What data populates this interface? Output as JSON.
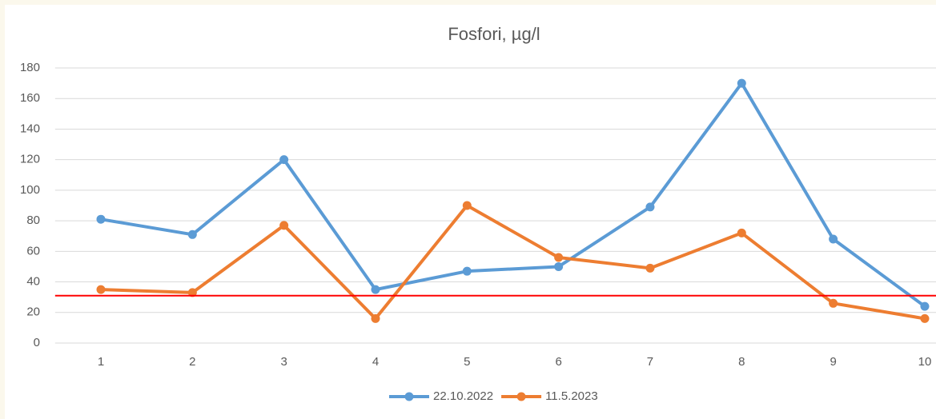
{
  "chart_data": {
    "type": "line",
    "title": "Fosfori, µg/l",
    "categories": [
      "1",
      "2",
      "3",
      "4",
      "5",
      "6",
      "7",
      "8",
      "9",
      "10"
    ],
    "series": [
      {
        "name": "22.10.2022",
        "color": "#5b9bd5",
        "values": [
          81,
          71,
          120,
          35,
          47,
          50,
          89,
          170,
          68,
          24
        ]
      },
      {
        "name": "11.5.2023",
        "color": "#ed7d31",
        "values": [
          35,
          33,
          77,
          16,
          90,
          56,
          49,
          72,
          26,
          16
        ]
      }
    ],
    "reference_line": {
      "value": 31,
      "color": "#ff0000"
    },
    "ylim": [
      0,
      180
    ],
    "yticks": [
      0,
      20,
      40,
      60,
      80,
      100,
      120,
      140,
      160,
      180
    ],
    "grid": true,
    "legend": "bottom"
  }
}
